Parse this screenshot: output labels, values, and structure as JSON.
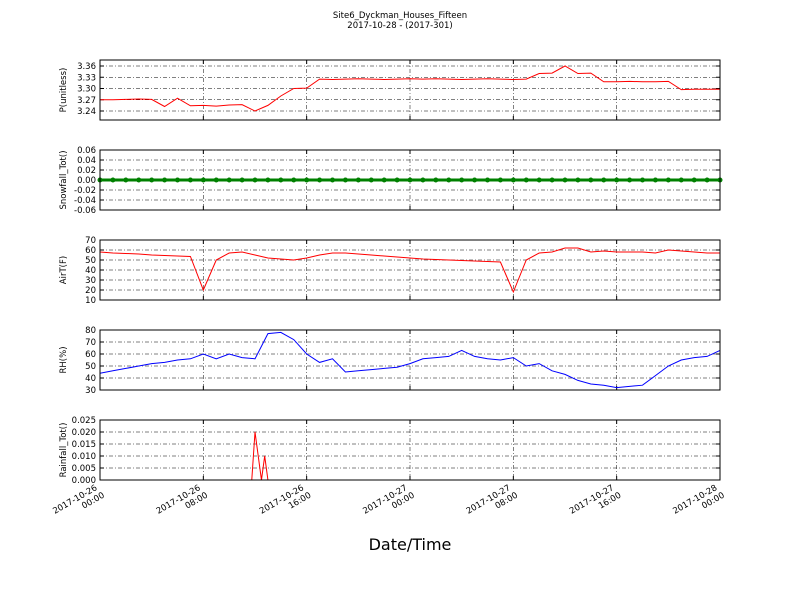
{
  "header": {
    "title": "Site6_Dyckman_Houses_Fifteen",
    "subtitle": "2017-10-28 - (2017-301)"
  },
  "chart_data": [
    {
      "type": "line",
      "ylabel": "P(unitless)",
      "grid": true,
      "xlim": [
        "2017-10-26 00:00",
        "2017-10-28 00:00"
      ],
      "xticks": [
        "2017-10-26 00:00",
        "2017-10-26 08:00",
        "2017-10-26 16:00",
        "2017-10-27 00:00",
        "2017-10-27 08:00",
        "2017-10-27 16:00",
        "2017-10-28 00:00"
      ],
      "ylim": [
        3.216,
        3.376
      ],
      "yticks": [
        3.24,
        3.27,
        {
          "value": 3.3,
          "label": "3.30"
        },
        3.33,
        3.36
      ],
      "x": [
        "2017-10-26 00:00",
        "2017-10-26 01:00",
        "2017-10-26 02:00",
        "2017-10-26 03:00",
        "2017-10-26 04:00",
        "2017-10-26 05:00",
        "2017-10-26 06:00",
        "2017-10-26 07:00",
        "2017-10-26 08:00",
        "2017-10-26 09:00",
        "2017-10-26 10:00",
        "2017-10-26 11:00",
        "2017-10-26 12:00",
        "2017-10-26 13:00",
        "2017-10-26 14:00",
        "2017-10-26 15:00",
        "2017-10-26 16:00",
        "2017-10-26 17:00",
        "2017-10-26 18:00",
        "2017-10-26 19:00",
        "2017-10-26 20:00",
        "2017-10-26 21:00",
        "2017-10-26 22:00",
        "2017-10-26 23:00",
        "2017-10-27 00:00",
        "2017-10-27 01:00",
        "2017-10-27 02:00",
        "2017-10-27 03:00",
        "2017-10-27 04:00",
        "2017-10-27 05:00",
        "2017-10-27 06:00",
        "2017-10-27 07:00",
        "2017-10-27 08:00",
        "2017-10-27 09:00",
        "2017-10-27 10:00",
        "2017-10-27 11:00",
        "2017-10-27 12:00",
        "2017-10-27 13:00",
        "2017-10-27 14:00",
        "2017-10-27 15:00",
        "2017-10-27 16:00",
        "2017-10-27 17:00",
        "2017-10-27 18:00",
        "2017-10-27 19:00",
        "2017-10-27 20:00",
        "2017-10-27 21:00",
        "2017-10-27 22:00",
        "2017-10-27 23:00",
        "2017-10-28 00:00"
      ],
      "series": [
        {
          "color": "#ff0000",
          "values": [
            3.27,
            3.27,
            3.271,
            3.272,
            3.271,
            3.252,
            3.274,
            3.254,
            3.255,
            3.253,
            3.256,
            3.257,
            3.24,
            3.255,
            3.28,
            3.3,
            3.301,
            3.325,
            3.324,
            3.325,
            3.326,
            3.325,
            3.324,
            3.325,
            3.326,
            3.325,
            3.326,
            3.325,
            3.324,
            3.325,
            3.326,
            3.325,
            3.324,
            3.325,
            3.34,
            3.341,
            3.36,
            3.34,
            3.341,
            3.318,
            3.318,
            3.319,
            3.318,
            3.318,
            3.319,
            3.297,
            3.298,
            3.298,
            3.298
          ]
        }
      ]
    },
    {
      "type": "line",
      "ylabel": "Snowfall_Tot()",
      "grid": true,
      "markers": true,
      "xlim": [
        "2017-10-26 00:00",
        "2017-10-28 00:00"
      ],
      "xticks": [
        "2017-10-26 00:00",
        "2017-10-26 08:00",
        "2017-10-26 16:00",
        "2017-10-27 00:00",
        "2017-10-27 08:00",
        "2017-10-27 16:00",
        "2017-10-28 00:00"
      ],
      "ylim": [
        -0.06,
        0.06
      ],
      "yticks": [
        -0.06,
        -0.04,
        -0.02,
        {
          "value": 0,
          "label": "0.00"
        },
        0.02,
        0.04,
        0.06
      ],
      "x": [
        "2017-10-26 00:00",
        "2017-10-26 01:00",
        "2017-10-26 02:00",
        "2017-10-26 03:00",
        "2017-10-26 04:00",
        "2017-10-26 05:00",
        "2017-10-26 06:00",
        "2017-10-26 07:00",
        "2017-10-26 08:00",
        "2017-10-26 09:00",
        "2017-10-26 10:00",
        "2017-10-26 11:00",
        "2017-10-26 12:00",
        "2017-10-26 13:00",
        "2017-10-26 14:00",
        "2017-10-26 15:00",
        "2017-10-26 16:00",
        "2017-10-26 17:00",
        "2017-10-26 18:00",
        "2017-10-26 19:00",
        "2017-10-26 20:00",
        "2017-10-26 21:00",
        "2017-10-26 22:00",
        "2017-10-26 23:00",
        "2017-10-27 00:00",
        "2017-10-27 01:00",
        "2017-10-27 02:00",
        "2017-10-27 03:00",
        "2017-10-27 04:00",
        "2017-10-27 05:00",
        "2017-10-27 06:00",
        "2017-10-27 07:00",
        "2017-10-27 08:00",
        "2017-10-27 09:00",
        "2017-10-27 10:00",
        "2017-10-27 11:00",
        "2017-10-27 12:00",
        "2017-10-27 13:00",
        "2017-10-27 14:00",
        "2017-10-27 15:00",
        "2017-10-27 16:00",
        "2017-10-27 17:00",
        "2017-10-27 18:00",
        "2017-10-27 19:00",
        "2017-10-27 20:00",
        "2017-10-27 21:00",
        "2017-10-27 22:00",
        "2017-10-27 23:00",
        "2017-10-28 00:00"
      ],
      "series": [
        {
          "color": "#008000",
          "values": [
            0,
            0,
            0,
            0,
            0,
            0,
            0,
            0,
            0,
            0,
            0,
            0,
            0,
            0,
            0,
            0,
            0,
            0,
            0,
            0,
            0,
            0,
            0,
            0,
            0,
            0,
            0,
            0,
            0,
            0,
            0,
            0,
            0,
            0,
            0,
            0,
            0,
            0,
            0,
            0,
            0,
            0,
            0,
            0,
            0,
            0,
            0,
            0,
            0
          ]
        }
      ]
    },
    {
      "type": "line",
      "ylabel": "AirT(F)",
      "grid": true,
      "xlim": [
        "2017-10-26 00:00",
        "2017-10-28 00:00"
      ],
      "xticks": [
        "2017-10-26 00:00",
        "2017-10-26 08:00",
        "2017-10-26 16:00",
        "2017-10-27 00:00",
        "2017-10-27 08:00",
        "2017-10-27 16:00",
        "2017-10-28 00:00"
      ],
      "ylim": [
        10,
        70
      ],
      "yticks": [
        10,
        20,
        30,
        40,
        50,
        60,
        70
      ],
      "x": [
        "2017-10-26 00:00",
        "2017-10-26 01:00",
        "2017-10-26 02:00",
        "2017-10-26 03:00",
        "2017-10-26 04:00",
        "2017-10-26 05:00",
        "2017-10-26 06:00",
        "2017-10-26 07:00",
        "2017-10-26 08:00",
        "2017-10-26 09:00",
        "2017-10-26 10:00",
        "2017-10-26 11:00",
        "2017-10-26 12:00",
        "2017-10-26 13:00",
        "2017-10-26 14:00",
        "2017-10-26 15:00",
        "2017-10-26 16:00",
        "2017-10-26 17:00",
        "2017-10-26 18:00",
        "2017-10-26 19:00",
        "2017-10-26 20:00",
        "2017-10-26 21:00",
        "2017-10-26 22:00",
        "2017-10-26 23:00",
        "2017-10-27 00:00",
        "2017-10-27 01:00",
        "2017-10-27 02:00",
        "2017-10-27 03:00",
        "2017-10-27 04:00",
        "2017-10-27 05:00",
        "2017-10-27 06:00",
        "2017-10-27 07:00",
        "2017-10-27 08:00",
        "2017-10-27 09:00",
        "2017-10-27 10:00",
        "2017-10-27 11:00",
        "2017-10-27 12:00",
        "2017-10-27 13:00",
        "2017-10-27 14:00",
        "2017-10-27 15:00",
        "2017-10-27 16:00",
        "2017-10-27 17:00",
        "2017-10-27 18:00",
        "2017-10-27 19:00",
        "2017-10-27 20:00",
        "2017-10-27 21:00",
        "2017-10-27 22:00",
        "2017-10-27 23:00",
        "2017-10-28 00:00"
      ],
      "series": [
        {
          "color": "#ff0000",
          "values": [
            58,
            57,
            56.5,
            56,
            55,
            54.5,
            54,
            53.5,
            20,
            50,
            57,
            58,
            55,
            52,
            51,
            50,
            52,
            55,
            57,
            57,
            56,
            55,
            54,
            53,
            52,
            51,
            50.5,
            50,
            49.5,
            49,
            48.5,
            48,
            18,
            50,
            57,
            58,
            62,
            62,
            58,
            59,
            58,
            58,
            58,
            57,
            60,
            59,
            58,
            57,
            57
          ]
        }
      ]
    },
    {
      "type": "line",
      "ylabel": "RH(%)",
      "grid": true,
      "xlim": [
        "2017-10-26 00:00",
        "2017-10-28 00:00"
      ],
      "xticks": [
        "2017-10-26 00:00",
        "2017-10-26 08:00",
        "2017-10-26 16:00",
        "2017-10-27 00:00",
        "2017-10-27 08:00",
        "2017-10-27 16:00",
        "2017-10-28 00:00"
      ],
      "ylim": [
        30,
        80
      ],
      "yticks": [
        30,
        40,
        50,
        60,
        70,
        80
      ],
      "x": [
        "2017-10-26 00:00",
        "2017-10-26 01:00",
        "2017-10-26 02:00",
        "2017-10-26 03:00",
        "2017-10-26 04:00",
        "2017-10-26 05:00",
        "2017-10-26 06:00",
        "2017-10-26 07:00",
        "2017-10-26 08:00",
        "2017-10-26 09:00",
        "2017-10-26 10:00",
        "2017-10-26 11:00",
        "2017-10-26 12:00",
        "2017-10-26 13:00",
        "2017-10-26 14:00",
        "2017-10-26 15:00",
        "2017-10-26 16:00",
        "2017-10-26 17:00",
        "2017-10-26 18:00",
        "2017-10-26 19:00",
        "2017-10-26 20:00",
        "2017-10-26 21:00",
        "2017-10-26 22:00",
        "2017-10-26 23:00",
        "2017-10-27 00:00",
        "2017-10-27 01:00",
        "2017-10-27 02:00",
        "2017-10-27 03:00",
        "2017-10-27 04:00",
        "2017-10-27 05:00",
        "2017-10-27 06:00",
        "2017-10-27 07:00",
        "2017-10-27 08:00",
        "2017-10-27 09:00",
        "2017-10-27 10:00",
        "2017-10-27 11:00",
        "2017-10-27 12:00",
        "2017-10-27 13:00",
        "2017-10-27 14:00",
        "2017-10-27 15:00",
        "2017-10-27 16:00",
        "2017-10-27 17:00",
        "2017-10-27 18:00",
        "2017-10-27 19:00",
        "2017-10-27 20:00",
        "2017-10-27 21:00",
        "2017-10-27 22:00",
        "2017-10-27 23:00",
        "2017-10-28 00:00"
      ],
      "series": [
        {
          "color": "#0000ff",
          "values": [
            44,
            46,
            48,
            50,
            52,
            53,
            55,
            56,
            60,
            56,
            60,
            57,
            56,
            77,
            78,
            72,
            60,
            53,
            56,
            45,
            46,
            47,
            48,
            49,
            52,
            56,
            57,
            58,
            63,
            58,
            56,
            55,
            57,
            50,
            52,
            46,
            43,
            38,
            35,
            34,
            32,
            33,
            34,
            42,
            50,
            55,
            57,
            58,
            63
          ]
        }
      ]
    },
    {
      "type": "line",
      "ylabel": "Rainfall_Tot()",
      "xlabel": "Date/Time",
      "grid": true,
      "xlim": [
        "2017-10-26 00:00",
        "2017-10-28 00:00"
      ],
      "xticks": [
        "2017-10-26 00:00",
        "2017-10-26 08:00",
        "2017-10-26 16:00",
        "2017-10-27 00:00",
        "2017-10-27 08:00",
        "2017-10-27 16:00",
        "2017-10-28 00:00"
      ],
      "ylim": [
        0,
        0.025
      ],
      "yticks": [
        {
          "value": 0,
          "label": "0.000"
        },
        0.005,
        {
          "value": 0.01,
          "label": "0.010"
        },
        0.015,
        {
          "value": 0.02,
          "label": "0.020"
        },
        0.025
      ],
      "x": [
        "2017-10-26 00:00",
        "2017-10-26 11:45",
        "2017-10-26 12:00",
        "2017-10-26 12:30",
        "2017-10-26 12:45",
        "2017-10-26 13:00",
        "2017-10-28 00:00"
      ],
      "series": [
        {
          "color": "#ff0000",
          "values": [
            0,
            0,
            0.02,
            0,
            0.01,
            0,
            0
          ]
        }
      ]
    }
  ]
}
